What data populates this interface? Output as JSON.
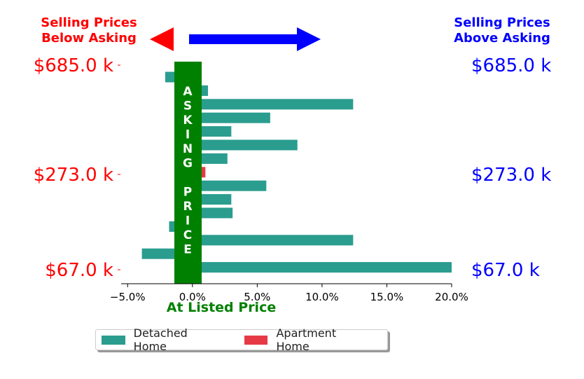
{
  "header": {
    "left_label_line1": "Selling Prices",
    "left_label_line2": "Below Asking",
    "right_label_line1": "Selling Prices",
    "right_label_line2": "Above Asking",
    "left_arrow_color": "#ff0000",
    "right_arrow_color": "#0000ff"
  },
  "asking_band": {
    "letters": [
      "A",
      "S",
      "K",
      "I",
      "N",
      "G",
      "",
      "P",
      "R",
      "I",
      "C",
      "E"
    ],
    "color": "#008000"
  },
  "chart_data": {
    "type": "bar",
    "orientation": "horizontal",
    "xlabel": "At Listed Price",
    "xlim": [
      -0.055,
      0.2
    ],
    "x_ticks": [
      -0.05,
      0.0,
      0.05,
      0.1,
      0.15,
      0.2
    ],
    "x_tick_labels": [
      "−5.0%",
      "0.0%",
      "5.0%",
      "10.0%",
      "15.0%",
      "20.0%"
    ],
    "y_tick_labels": [
      "$685.0 k",
      "$273.0 k",
      "$67.0 k"
    ],
    "left_axis_color": "#ff0000",
    "right_axis_color": "#0000ff",
    "grid": false,
    "legend_placement": "bottom-center",
    "series": [
      {
        "name": "Detached Home",
        "color": "#2a9d8f",
        "values": [
          -0.021,
          0.012,
          0.124,
          0.06,
          0.03,
          0.081,
          0.027,
          0.005,
          0.057,
          0.03,
          0.031,
          -0.018,
          0.124,
          -0.039,
          0.2
        ]
      },
      {
        "name": "Apartment Home",
        "color": "#e63946",
        "values": [
          0,
          0,
          0,
          0,
          0,
          0,
          0,
          0.01,
          0,
          0,
          0,
          0,
          0,
          0,
          0
        ]
      }
    ]
  }
}
